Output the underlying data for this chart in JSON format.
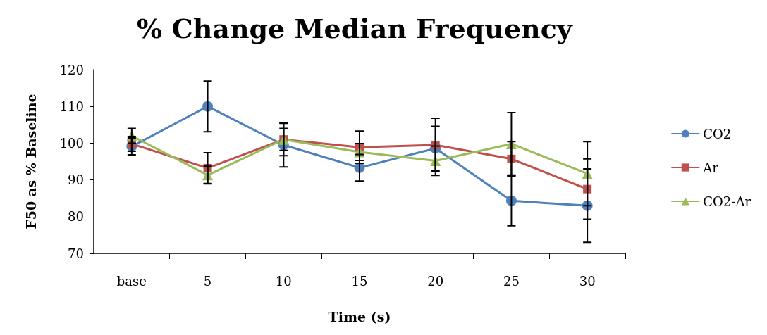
{
  "chart_data": {
    "type": "line",
    "title": "% Change Median Frequency",
    "xlabel": "Time (s)",
    "ylabel": "F50 as % Baseline",
    "categories": [
      "base",
      "5",
      "10",
      "15",
      "20",
      "25",
      "30"
    ],
    "series": [
      {
        "name": "CO2",
        "color": "#4f81bd",
        "marker": "circle",
        "values": [
          99.1,
          110,
          99.5,
          93.3,
          98.6,
          84.3,
          83
        ],
        "errors": [
          2.3,
          6.9,
          6,
          3.6,
          6,
          6.8,
          10
        ]
      },
      {
        "name": "Ar",
        "color": "#c0504d",
        "marker": "square",
        "values": [
          99.8,
          93.2,
          101,
          98.9,
          99.5,
          95.7,
          87.5
        ],
        "errors": [
          2,
          4.2,
          4.4,
          4.4,
          7.3,
          4.7,
          8.2
        ]
      },
      {
        "name": "CO2-Ar",
        "color": "#9bbb59",
        "marker": "triangle",
        "values": [
          102,
          91.3,
          101,
          97.6,
          95.2,
          99.8,
          91.7
        ],
        "errors": [
          2,
          2.4,
          3,
          2.3,
          4,
          8.5,
          8.7
        ]
      }
    ],
    "ylim": [
      70,
      120
    ],
    "yticks": [
      70,
      80,
      90,
      100,
      110,
      120
    ],
    "grid": false,
    "legend": "right"
  }
}
